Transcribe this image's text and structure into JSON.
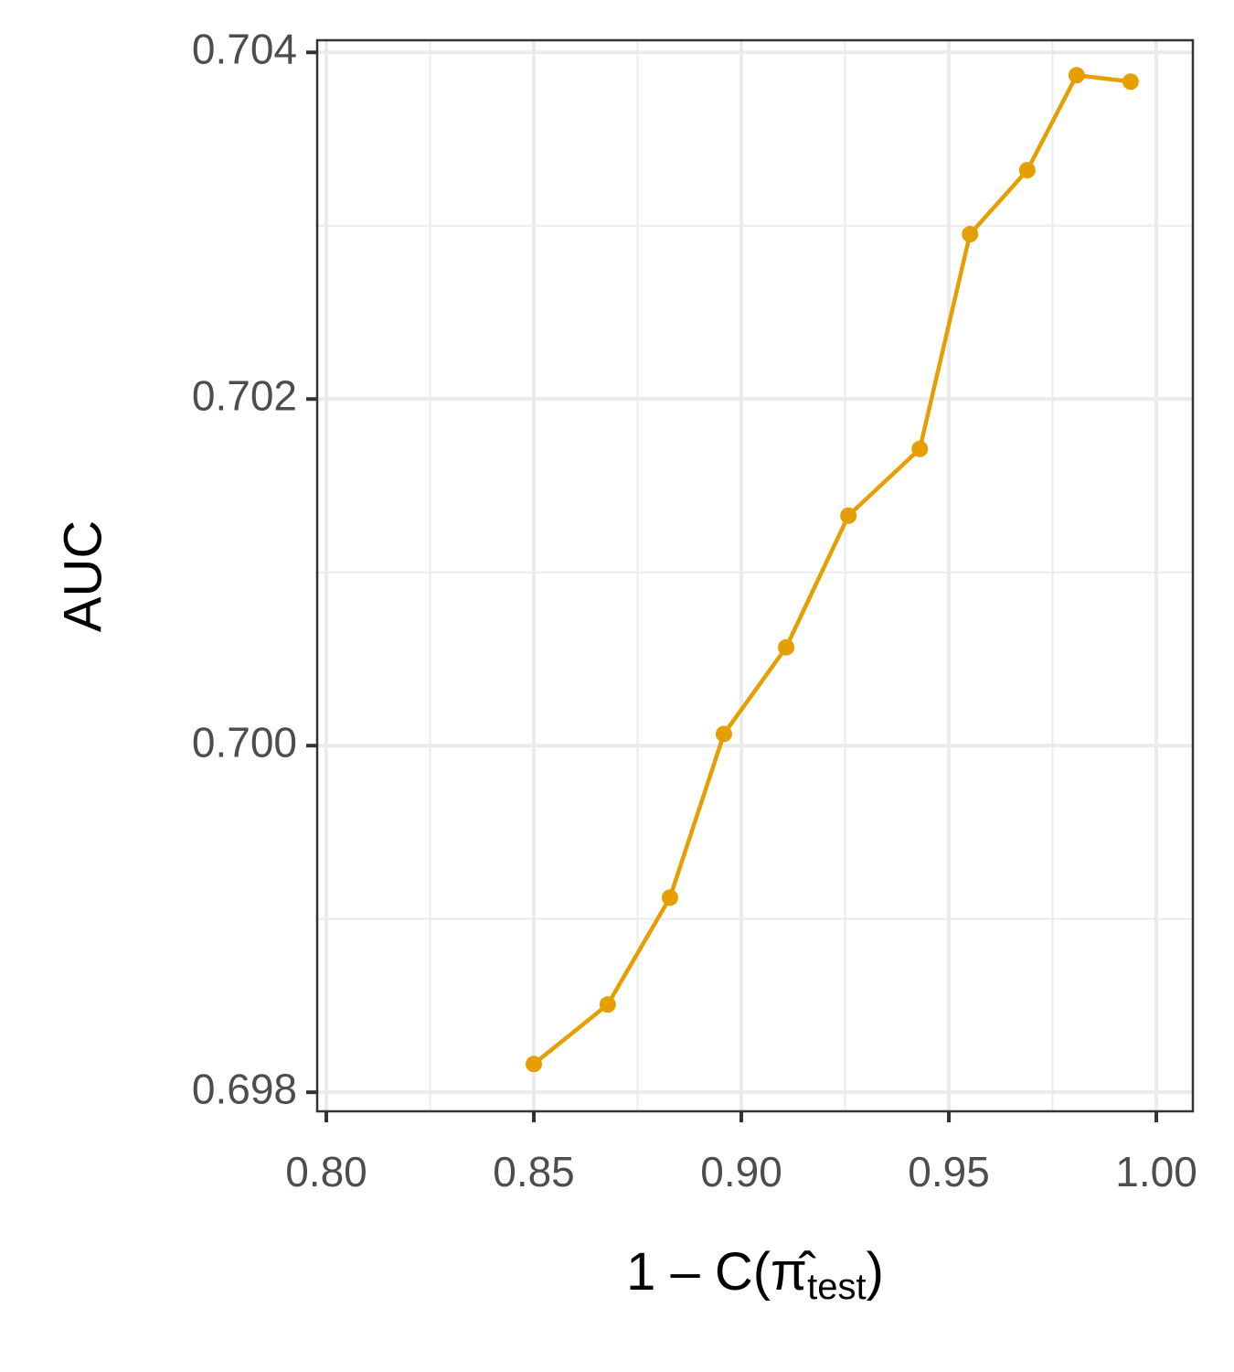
{
  "chart_data": {
    "type": "line",
    "x_label": [
      "1 – C(",
      "π̂",
      "test",
      ")"
    ],
    "y_label": "AUC",
    "x": [
      0.85,
      0.8678,
      0.8828,
      0.8958,
      0.9108,
      0.9258,
      0.943,
      0.9551,
      0.9689,
      0.9808,
      0.9938
    ],
    "values": [
      0.698163,
      0.698506,
      0.699123,
      0.700067,
      0.700567,
      0.701327,
      0.701712,
      0.702951,
      0.70332,
      0.703868,
      0.703831
    ],
    "color": "#E69F00",
    "xlim": [
      0.7978,
      1.0088
    ],
    "ylim": [
      0.69789,
      0.70407
    ],
    "xticks": [
      {
        "value": 0.8,
        "label": "0.80"
      },
      {
        "value": 0.85,
        "label": "0.85"
      },
      {
        "value": 0.9,
        "label": "0.90"
      },
      {
        "value": 0.95,
        "label": "0.95"
      },
      {
        "value": 1.0,
        "label": "1.00"
      }
    ],
    "yticks": [
      0.698,
      {
        "value": 0.7,
        "label": "0.700"
      },
      0.702,
      0.704
    ],
    "x_minor_ticks": [
      0.825,
      0.875,
      0.925,
      0.975
    ],
    "y_minor_ticks": [
      0.699,
      0.701,
      0.703
    ],
    "grid": true
  }
}
